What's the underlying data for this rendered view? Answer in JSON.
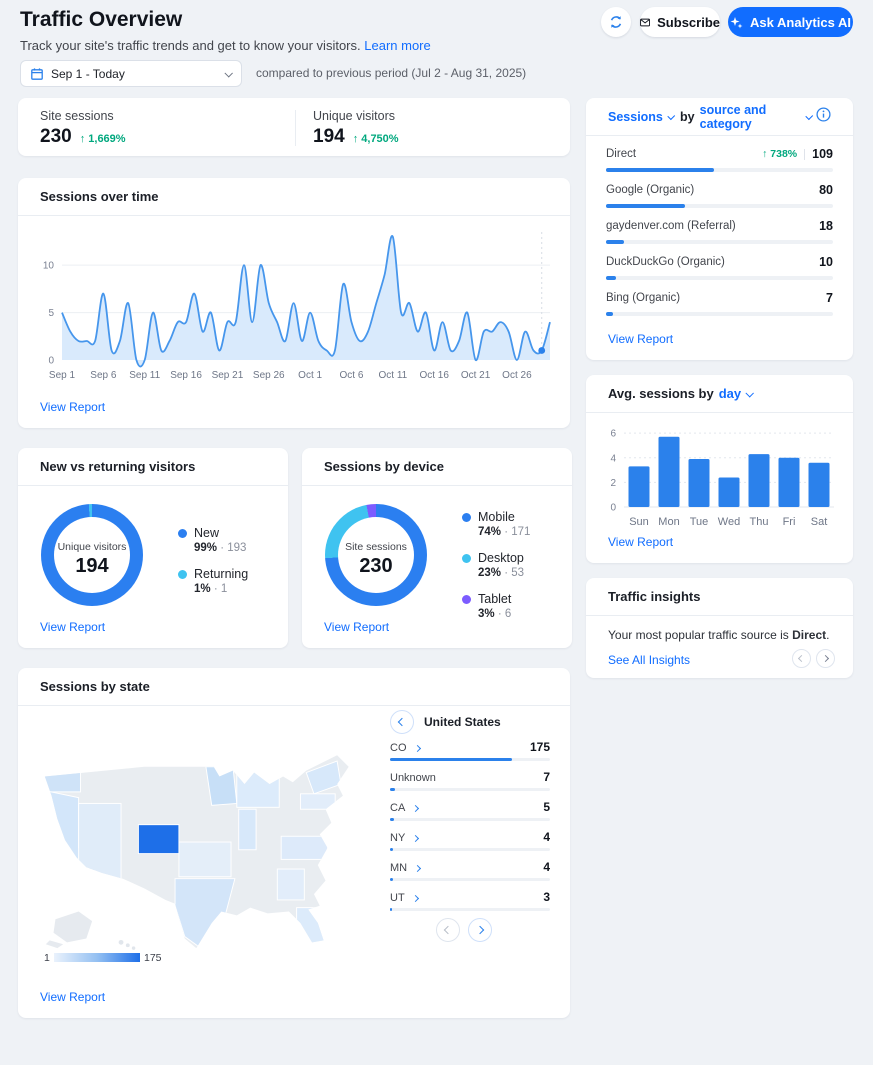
{
  "header": {
    "title": "Traffic Overview",
    "subtitle": "Track your site's traffic trends and get to know your visitors.",
    "learn_more": "Learn more",
    "subscribe": "Subscribe",
    "ask_ai": "Ask Analytics AI"
  },
  "date_bar": {
    "range": "Sep 1 - Today",
    "compare": "compared to previous period (Jul 2 - Aug 31, 2025)"
  },
  "kpi": {
    "items": [
      {
        "label": "Site sessions",
        "value": "230",
        "arrow": "↑",
        "change": "1,669%"
      },
      {
        "label": "Unique visitors",
        "value": "194",
        "arrow": "↑",
        "change": "4,750%"
      }
    ]
  },
  "cards": {
    "time": {
      "title": "Sessions over time",
      "view_report": "View Report"
    },
    "visitors": {
      "title": "New vs returning visitors",
      "view_report": "View Report"
    },
    "device": {
      "title": "Sessions by device",
      "view_report": "View Report"
    },
    "state": {
      "title": "Sessions by state",
      "country": "United States",
      "view_report": "View Report",
      "legend_min": "1",
      "legend_max": "175"
    },
    "sources": {
      "metric": "Sessions",
      "by": "by",
      "dimension": "source and category",
      "view_report": "View Report"
    },
    "day": {
      "title_prefix": "Avg. sessions by",
      "dimension": "day",
      "view_report": "View Report"
    },
    "insights": {
      "title": "Traffic insights",
      "text_prefix": "Your most popular traffic source is",
      "text_bold": "Direct",
      "text_suffix": ".",
      "link": "See All Insights"
    }
  },
  "chart_data": [
    {
      "id": "sessions_over_time",
      "type": "area",
      "title": "Sessions over time",
      "x_ticks": [
        "Sep 1",
        "Sep 6",
        "Sep 11",
        "Sep 16",
        "Sep 21",
        "Sep 26",
        "Oct 1",
        "Oct 6",
        "Oct 11",
        "Oct 16",
        "Oct 21",
        "Oct 26"
      ],
      "tick_every_days": 5,
      "values": [
        5,
        3,
        2,
        2,
        2,
        7,
        1,
        2,
        6,
        0,
        0,
        5,
        1,
        2,
        4,
        4,
        7,
        3,
        5,
        1,
        4,
        4,
        10,
        4,
        10,
        6,
        4,
        2,
        6,
        2,
        5,
        2,
        1,
        1,
        8,
        4,
        2,
        3,
        6,
        9,
        13,
        5,
        6,
        3,
        5,
        1,
        4,
        1,
        2,
        5,
        0,
        3,
        3,
        4,
        3,
        0,
        3,
        1,
        1,
        4
      ],
      "y_ticks": [
        0,
        5,
        10
      ],
      "ylim": [
        0,
        13.5
      ],
      "today_index": 58,
      "line_color": "#4696ec",
      "fill_color": "#d9eafc"
    },
    {
      "id": "avg_sessions_by_day",
      "type": "bar",
      "categories": [
        "Sun",
        "Mon",
        "Tue",
        "Wed",
        "Thu",
        "Fri",
        "Sat"
      ],
      "values": [
        3.3,
        5.7,
        3.9,
        2.4,
        4.3,
        4.0,
        3.6
      ],
      "y_ticks": [
        0,
        2,
        4,
        6
      ],
      "ylim": [
        0,
        6.5
      ],
      "bar_color": "#2b81eb"
    },
    {
      "id": "new_vs_returning",
      "type": "donut",
      "center_label": "Unique visitors",
      "center_value": "194",
      "segments": [
        {
          "name": "New",
          "pct": "99%",
          "pct_num": 99,
          "count": "193",
          "color": "#2b7ff0"
        },
        {
          "name": "Returning",
          "pct": "1%",
          "pct_num": 1,
          "count": "1",
          "color": "#3fc3f0"
        }
      ]
    },
    {
      "id": "sessions_by_device",
      "type": "donut",
      "center_label": "Site sessions",
      "center_value": "230",
      "segments": [
        {
          "name": "Mobile",
          "pct": "74%",
          "pct_num": 74,
          "count": "171",
          "color": "#2b7ff0"
        },
        {
          "name": "Desktop",
          "pct": "23%",
          "pct_num": 23,
          "count": "53",
          "color": "#3fc3f0"
        },
        {
          "name": "Tablet",
          "pct": "3%",
          "pct_num": 3,
          "count": "6",
          "color": "#7c5cff"
        }
      ]
    },
    {
      "id": "sessions_by_source",
      "type": "table",
      "total": 230,
      "rows": [
        {
          "label": "Direct",
          "value": 109,
          "arrow": "↑",
          "change": "738%"
        },
        {
          "label": "Google (Organic)",
          "value": 80
        },
        {
          "label": "gaydenver.com (Referral)",
          "value": 18
        },
        {
          "label": "DuckDuckGo (Organic)",
          "value": 10
        },
        {
          "label": "Bing (Organic)",
          "value": 7
        }
      ]
    },
    {
      "id": "sessions_by_state",
      "type": "table",
      "total": 230,
      "rows": [
        {
          "label": "CO",
          "value": 175,
          "drill": true
        },
        {
          "label": "Unknown",
          "value": 7,
          "drill": false
        },
        {
          "label": "CA",
          "value": 5,
          "drill": true
        },
        {
          "label": "NY",
          "value": 4,
          "drill": true
        },
        {
          "label": "MN",
          "value": 4,
          "drill": true
        },
        {
          "label": "UT",
          "value": 3,
          "drill": true
        }
      ]
    }
  ],
  "colors": {
    "accent": "#116dff",
    "positive": "#00a87e",
    "bar": "#2b81eb",
    "map_high": "#1e6fe8",
    "map_low": "#eaf2fc"
  }
}
